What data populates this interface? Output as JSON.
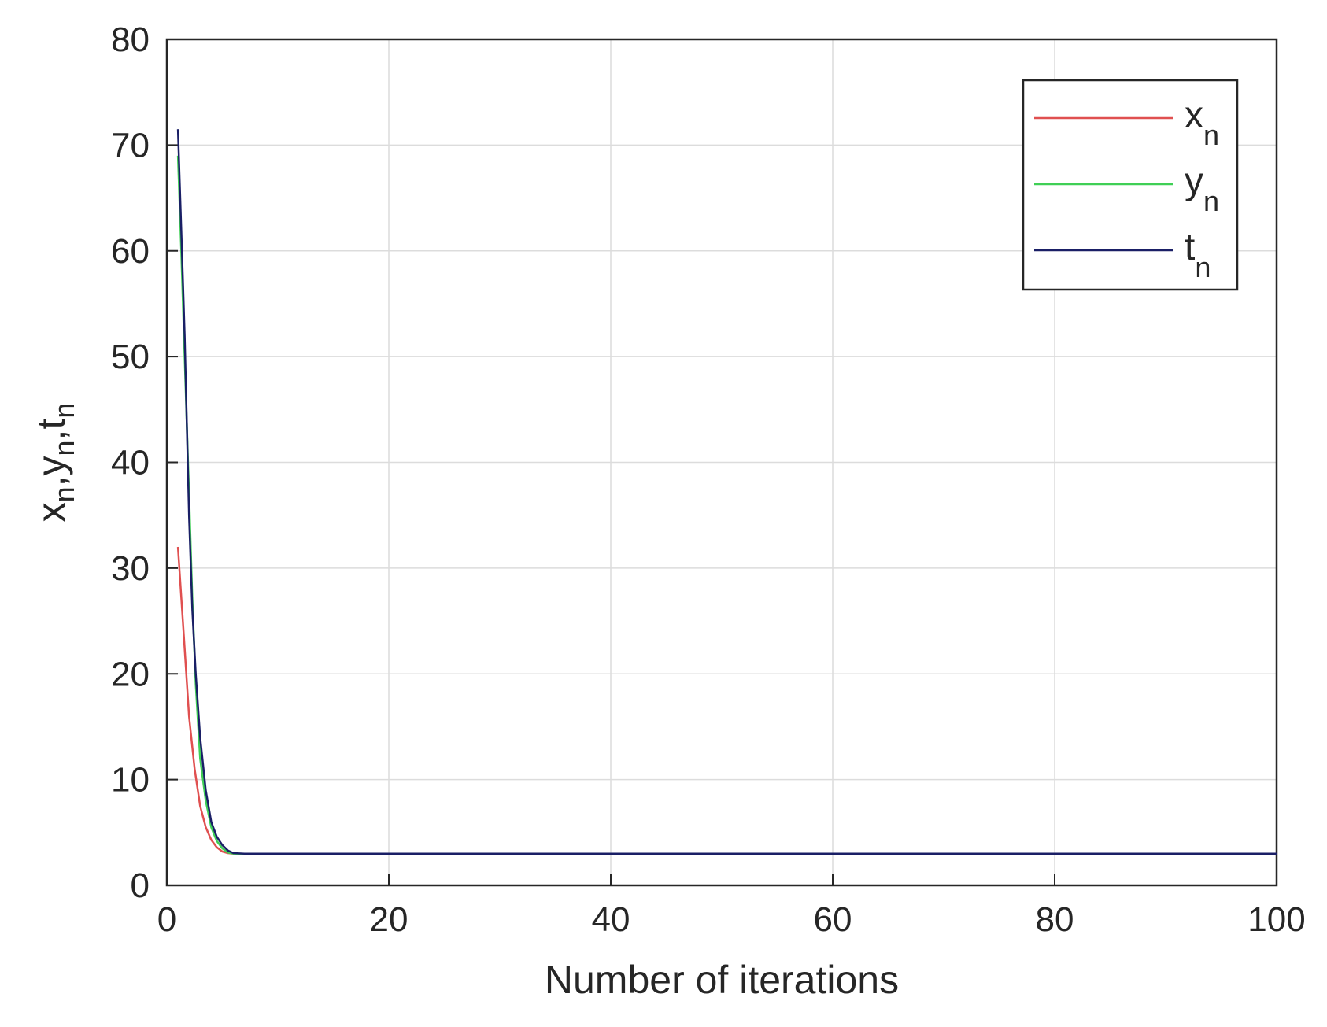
{
  "chart_data": {
    "type": "line",
    "xlabel": "Number of iterations",
    "ylabel": {
      "parts": [
        "x",
        "n",
        ",y",
        "n",
        ",t",
        "n"
      ]
    },
    "xlim": [
      0,
      100
    ],
    "ylim": [
      0,
      80
    ],
    "xticks": [
      0,
      20,
      40,
      60,
      80,
      100
    ],
    "yticks": [
      0,
      10,
      20,
      30,
      40,
      50,
      60,
      70,
      80
    ],
    "grid": true,
    "legend_position": "top-right",
    "series": [
      {
        "name": "x",
        "subscript": "n",
        "color": "#e05050",
        "x": [
          1,
          1.5,
          2,
          2.5,
          3,
          3.5,
          4,
          4.5,
          5,
          5.5,
          6,
          7,
          100
        ],
        "y": [
          32,
          24,
          16,
          11,
          7.5,
          5.5,
          4.3,
          3.6,
          3.2,
          3.05,
          3,
          3,
          3
        ]
      },
      {
        "name": "y",
        "subscript": "n",
        "color": "#3fcf55",
        "x": [
          1,
          1.3,
          1.6,
          2,
          2.3,
          2.6,
          3,
          3.5,
          4,
          4.5,
          5,
          5.5,
          6,
          7,
          100
        ],
        "y": [
          69,
          60,
          50,
          37,
          27,
          19,
          12,
          8,
          5.5,
          4.2,
          3.5,
          3.1,
          3,
          3,
          3
        ]
      },
      {
        "name": "t",
        "subscript": "n",
        "color": "#1a1f66",
        "x": [
          1,
          1.3,
          1.6,
          2,
          2.3,
          2.6,
          3,
          3.5,
          4,
          4.5,
          5,
          5.5,
          6,
          7,
          100
        ],
        "y": [
          71.5,
          62,
          52,
          35,
          26,
          20,
          14,
          9,
          6,
          4.6,
          3.8,
          3.3,
          3.05,
          3,
          3
        ]
      }
    ]
  }
}
